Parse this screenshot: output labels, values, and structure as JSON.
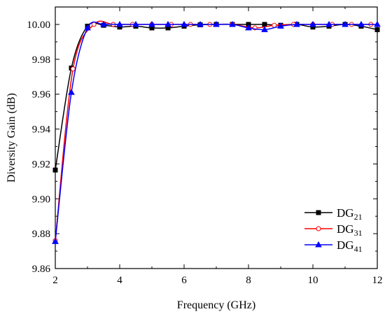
{
  "chart_data": {
    "type": "line",
    "xlabel": "Frequency (GHz)",
    "ylabel": "Diversity Gain (dB)",
    "xlim": [
      2,
      12
    ],
    "ylim": [
      9.86,
      10.01
    ],
    "xticks": [
      "2",
      "4",
      "6",
      "8",
      "10",
      "12"
    ],
    "yticks": [
      "9.86",
      "9.88",
      "9.90",
      "9.92",
      "9.94",
      "9.96",
      "9.98",
      "10.00"
    ],
    "legend_position": "bottom-right",
    "grid": false,
    "series": [
      {
        "name": "DG",
        "name_sub": "21",
        "color": "#000000",
        "marker": "square",
        "fill": "filled",
        "x": [
          2,
          2.5,
          3,
          3.5,
          4,
          4.5,
          5,
          5.5,
          6,
          6.5,
          7,
          7.5,
          8,
          8.5,
          9,
          9.5,
          10,
          10.5,
          11,
          11.5,
          12
        ],
        "y": [
          9.9165,
          9.975,
          9.999,
          9.9995,
          9.9985,
          9.999,
          9.998,
          9.998,
          9.999,
          9.9998,
          10.0,
          10.0,
          10.0,
          10.0,
          9.9995,
          10.0,
          9.9985,
          9.999,
          10.0,
          9.999,
          9.997
        ]
      },
      {
        "name": "DG",
        "name_sub": "31",
        "color": "#ff0000",
        "marker": "circle",
        "fill": "open",
        "x": [
          2,
          2.55,
          3.2,
          3.8,
          4.4,
          5.0,
          5.6,
          6.2,
          6.8,
          7.5,
          8.2,
          8.8,
          9.4,
          10.0,
          10.6,
          11.2,
          11.8
        ],
        "y": [
          9.876,
          9.9745,
          10.0,
          10.0,
          10.0,
          10.0,
          10.0,
          10.0,
          10.0,
          10.0,
          9.998,
          9.9995,
          10.0,
          10.0,
          10.0,
          10.0,
          10.0
        ]
      },
      {
        "name": "DG",
        "name_sub": "41",
        "color": "#0000ff",
        "marker": "triangle",
        "fill": "filled",
        "x": [
          2,
          2.5,
          3,
          3.5,
          4,
          4.5,
          5,
          5.5,
          6,
          6.5,
          7,
          7.5,
          8,
          8.5,
          9,
          9.5,
          10,
          10.5,
          11,
          11.5,
          12
        ],
        "y": [
          9.8755,
          9.961,
          9.998,
          10.0,
          10.0,
          10.0,
          10.0,
          10.0,
          10.0,
          10.0,
          10.0,
          10.0,
          9.998,
          9.997,
          9.999,
          10.0,
          10.0,
          10.0,
          10.0,
          10.0,
          10.0
        ]
      }
    ]
  }
}
